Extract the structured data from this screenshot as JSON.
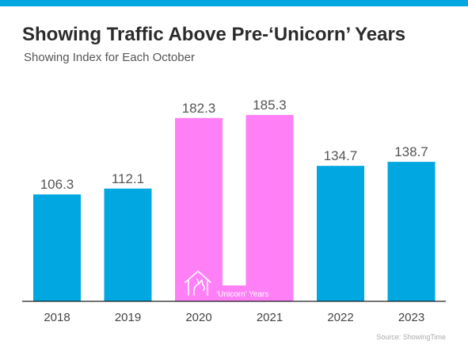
{
  "header": {
    "title": "Showing Traffic Above Pre-‘Unicorn’ Years",
    "subtitle": "Showing Index for Each October"
  },
  "footer": {
    "source": "Source: ShowingTime"
  },
  "colors": {
    "accent_bar": "#00a7e1",
    "normal_bar": "#00a7e1",
    "unicorn_bar": "#ff7ff6",
    "axis": "#222222",
    "value_label": "#555555",
    "tick_label": "#444444"
  },
  "chart_data": {
    "type": "bar",
    "title": "Showing Traffic Above Pre-‘Unicorn’ Years",
    "subtitle": "Showing Index for Each October",
    "categories": [
      "2018",
      "2019",
      "2020",
      "2021",
      "2022",
      "2023"
    ],
    "values": [
      106.3,
      112.1,
      182.3,
      185.3,
      134.7,
      138.7
    ],
    "highlighted": [
      false,
      false,
      true,
      true,
      false,
      false
    ],
    "ylim": [
      0,
      185.3
    ],
    "grid": false,
    "annotation": {
      "text": "‘Unicorn’ Years",
      "applies_to": [
        "2020",
        "2021"
      ],
      "icon": "unicorn-house-icon"
    }
  }
}
